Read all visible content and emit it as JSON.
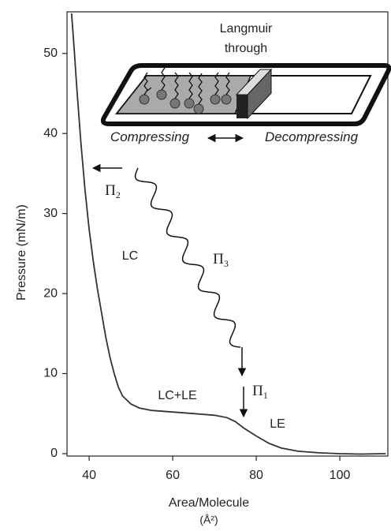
{
  "chart_data": {
    "type": "line",
    "x_label": "Area/Molecule",
    "x_unit": "(Å²)",
    "y_label": "Pressure (mN/m)",
    "x": [
      35.8,
      36.5,
      37,
      38,
      39,
      40,
      41,
      42,
      43,
      44,
      45,
      46,
      47,
      48,
      50,
      52,
      55,
      60,
      65,
      70,
      73,
      75,
      77,
      80,
      83,
      86,
      90,
      95,
      100,
      105,
      111
    ],
    "series": [
      {
        "color": "#333333",
        "values": [
          55,
          50,
          46,
          39,
          33,
          28,
          24,
          20.5,
          17.5,
          14.5,
          12,
          10,
          8.3,
          7.2,
          6.2,
          5.7,
          5.4,
          5.2,
          5.0,
          4.8,
          4.5,
          4.0,
          3.2,
          2.2,
          1.3,
          0.7,
          0.3,
          0.1,
          0,
          -0.05,
          0
        ]
      }
    ],
    "xlim": [
      34.7,
      111.5
    ],
    "ylim": [
      -0.3,
      55.2
    ],
    "xticks": [
      40,
      60,
      80,
      100
    ],
    "yticks": [
      0,
      10,
      20,
      30,
      40,
      50
    ],
    "annotations": [
      {
        "text": "Langmuir"
      },
      {
        "text": "through"
      },
      {
        "text": "Compressing"
      },
      {
        "text": "Decompressing"
      },
      {
        "text": "LC"
      },
      {
        "text": "LC+LE"
      },
      {
        "text": "LE"
      },
      {
        "text": "Π",
        "sub": "2"
      },
      {
        "text": "Π",
        "sub": "3"
      },
      {
        "text": "Π",
        "sub": "1"
      }
    ]
  }
}
